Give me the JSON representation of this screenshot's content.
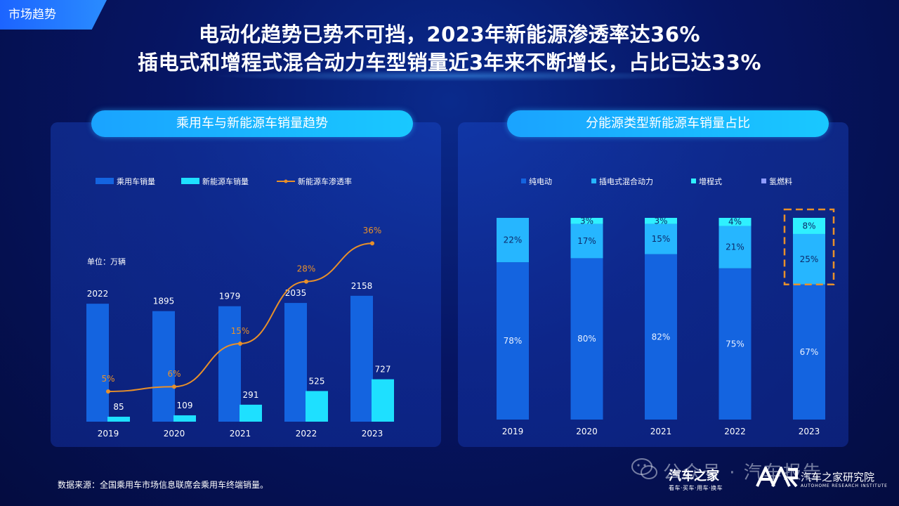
{
  "section_tag": "市场趋势",
  "headline_1": "电动化趋势已势不可挡，2023年新能源渗透率达36%",
  "headline_2": "插电式和增程式混合动力车型销量近3年来不断增长，占比已达33%",
  "left_panel_title": "乘用车与新能源车销量趋势",
  "right_panel_title": "分能源类型新能源车销量占比",
  "source_note": "数据来源：全国乘用车市场信息联席会乘用车终端销量。",
  "watermark": "公众号 · 汽车报告",
  "brand_autohome": {
    "name": "汽车之家",
    "slogan": "看车·买车·用车·换车"
  },
  "brand_research": {
    "name": "汽车之家研究院",
    "sub": "AUTOHOME RESEARCH INSTITUTE"
  },
  "colors": {
    "passenger_bar": "#1464e0",
    "nev_bar": "#1ee0ff",
    "penetration_line": "#e8902a",
    "bev": "#1464e0",
    "phev": "#26b6ff",
    "erev": "#2ff0ff",
    "fcev": "#8f9cff",
    "highlight_box": "#e8902a"
  },
  "chart_data": [
    {
      "type": "bar",
      "title": "乘用车与新能源车销量趋势",
      "unit_label": "单位：万辆",
      "categories": [
        "2019",
        "2020",
        "2021",
        "2022",
        "2023"
      ],
      "series": [
        {
          "name": "乘用车销量",
          "kind": "bar",
          "values": [
            2022,
            1895,
            1979,
            2035,
            2158
          ]
        },
        {
          "name": "新能源车销量",
          "kind": "bar",
          "values": [
            85,
            109,
            291,
            525,
            727
          ]
        },
        {
          "name": "新能源车渗透率",
          "kind": "line",
          "values": [
            5,
            6,
            15,
            28,
            36
          ],
          "value_suffix": "%"
        }
      ],
      "legend_position": "top",
      "grid": false
    },
    {
      "type": "bar",
      "stacked": true,
      "percent": true,
      "title": "分能源类型新能源车销量占比",
      "categories": [
        "2019",
        "2020",
        "2021",
        "2022",
        "2023"
      ],
      "series": [
        {
          "name": "纯电动",
          "values": [
            78,
            80,
            82,
            75,
            67
          ]
        },
        {
          "name": "插电式混合动力",
          "values": [
            22,
            17,
            15,
            21,
            25
          ]
        },
        {
          "name": "增程式",
          "values": [
            0,
            3,
            3,
            4,
            8
          ]
        },
        {
          "name": "氢燃料",
          "values": [
            0,
            0,
            0,
            0,
            0
          ]
        }
      ],
      "highlight_category": "2023",
      "legend_position": "top",
      "grid": false
    }
  ]
}
